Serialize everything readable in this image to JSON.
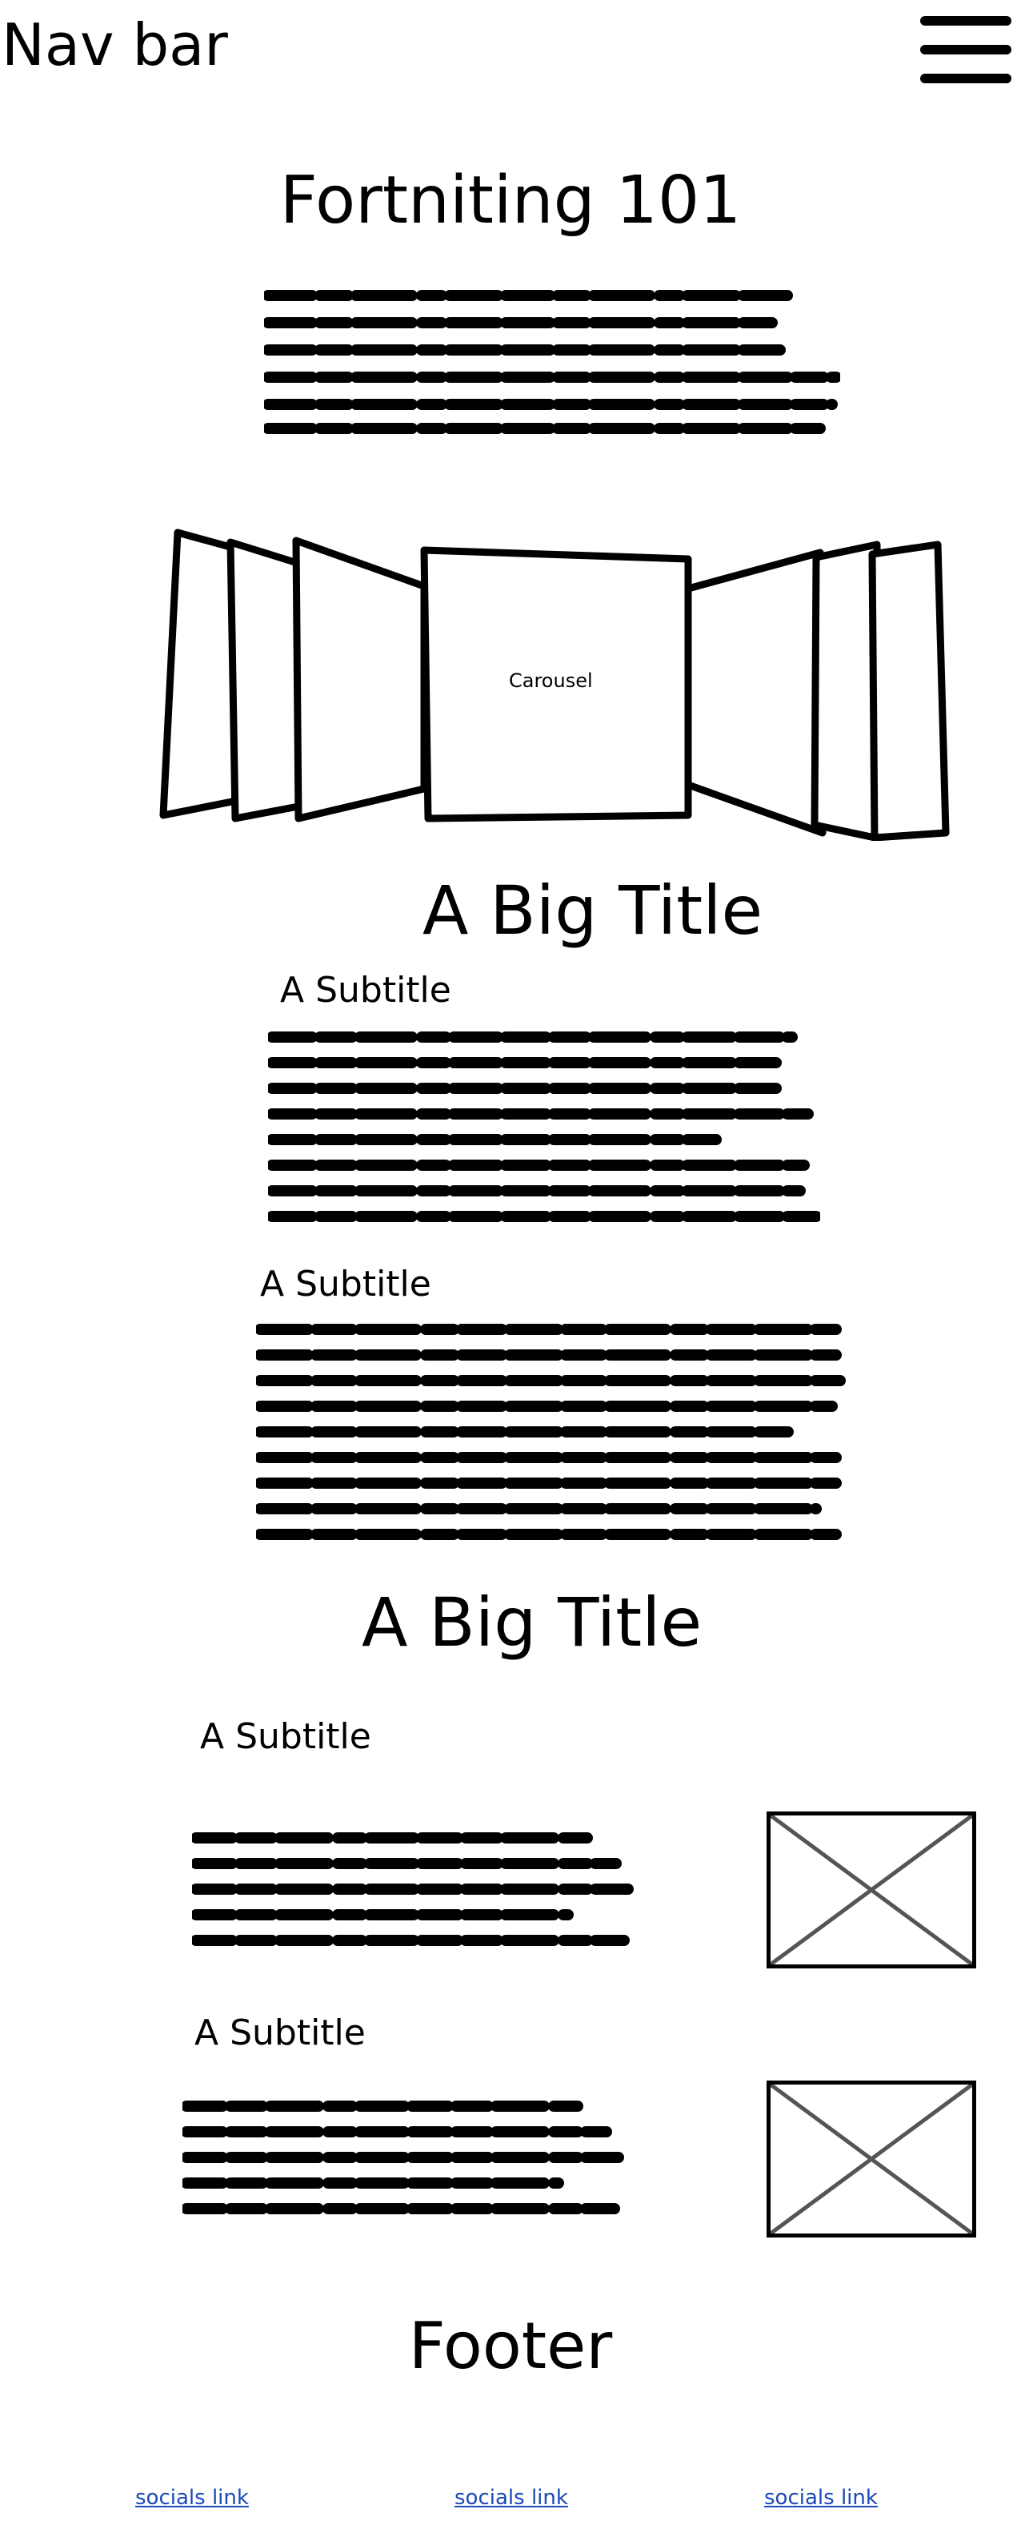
{
  "nav": {
    "title": "Nav bar",
    "menu_icon": "hamburger-menu-icon"
  },
  "hero": {
    "title": "Fortniting 101"
  },
  "carousel": {
    "label": "Carousel"
  },
  "section1": {
    "title": "A Big Title",
    "blocks": [
      {
        "subtitle": "A Subtitle"
      },
      {
        "subtitle": "A Subtitle"
      }
    ]
  },
  "section2": {
    "title": "A Big Title",
    "blocks": [
      {
        "subtitle": "A Subtitle",
        "image_icon": "image-placeholder-icon"
      },
      {
        "subtitle": "A Subtitle",
        "image_icon": "image-placeholder-icon"
      }
    ]
  },
  "footer": {
    "title": "Footer",
    "links": [
      {
        "label": "socials link"
      },
      {
        "label": "socials link"
      },
      {
        "label": "socials link"
      }
    ]
  },
  "colors": {
    "ink": "#000000",
    "link": "#1a49b8",
    "placeholder_x": "#555555"
  }
}
